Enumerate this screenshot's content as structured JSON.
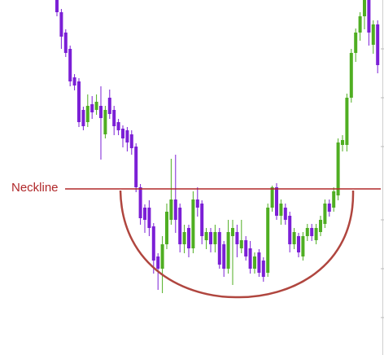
{
  "chart_data": {
    "type": "candlestick",
    "ylim": [
      0,
      436
    ],
    "up_color": "#4fae22",
    "down_color": "#7b1fd6",
    "open": [
      436,
      421,
      396,
      376,
      341,
      336,
      301,
      286,
      308,
      301,
      306,
      271,
      316,
      301,
      286,
      278,
      276,
      271,
      256,
      206,
      181,
      181,
      158,
      121,
      106,
      136,
      166,
      191,
      181,
      136,
      156,
      131,
      191,
      186,
      141,
      151,
      136,
      151,
      136,
      106,
      146,
      151,
      131,
      141,
      131,
      106,
      126,
      116,
      101,
      181,
      206,
      171,
      181,
      171,
      136,
      146,
      121,
      146,
      156,
      141,
      151,
      161,
      186,
      181,
      196,
      258,
      258,
      316,
      371,
      396,
      416,
      436,
      381,
      406
    ],
    "high": [
      436,
      425,
      400,
      380,
      345,
      340,
      305,
      320,
      318,
      320,
      330,
      306,
      326,
      306,
      290,
      282,
      280,
      276,
      260,
      210,
      185,
      190,
      162,
      125,
      146,
      186,
      241,
      246,
      186,
      160,
      160,
      201,
      206,
      190,
      156,
      156,
      160,
      156,
      140,
      166,
      166,
      160,
      166,
      146,
      140,
      126,
      130,
      120,
      186,
      208,
      211,
      191,
      186,
      176,
      156,
      150,
      151,
      161,
      161,
      161,
      171,
      191,
      191,
      206,
      266,
      270,
      321,
      376,
      401,
      421,
      436,
      436,
      411,
      411
    ],
    "low": [
      416,
      376,
      366,
      330,
      325,
      280,
      276,
      280,
      290,
      295,
      240,
      266,
      290,
      270,
      270,
      255,
      250,
      246,
      200,
      160,
      150,
      146,
      100,
      80,
      76,
      130,
      160,
      150,
      126,
      125,
      120,
      125,
      170,
      136,
      130,
      126,
      126,
      106,
      96,
      100,
      86,
      120,
      125,
      116,
      100,
      100,
      96,
      90,
      96,
      176,
      166,
      160,
      160,
      126,
      130,
      120,
      116,
      140,
      140,
      136,
      146,
      156,
      170,
      176,
      190,
      250,
      250,
      310,
      360,
      386,
      400,
      380,
      370,
      346
    ],
    "close": [
      421,
      391,
      371,
      336,
      331,
      286,
      281,
      306,
      298,
      311,
      291,
      301,
      296,
      281,
      276,
      266,
      261,
      254,
      206,
      168,
      166,
      156,
      116,
      106,
      136,
      176,
      191,
      166,
      136,
      151,
      131,
      191,
      181,
      146,
      151,
      136,
      151,
      111,
      106,
      151,
      156,
      136,
      141,
      121,
      106,
      121,
      101,
      96,
      181,
      206,
      171,
      186,
      166,
      136,
      151,
      126,
      146,
      156,
      146,
      156,
      166,
      186,
      176,
      201,
      261,
      264,
      316,
      371,
      396,
      416,
      436,
      396,
      406,
      356
    ],
    "neckline": {
      "text": "Neckline",
      "value": 204,
      "color": "#b0282a"
    }
  }
}
